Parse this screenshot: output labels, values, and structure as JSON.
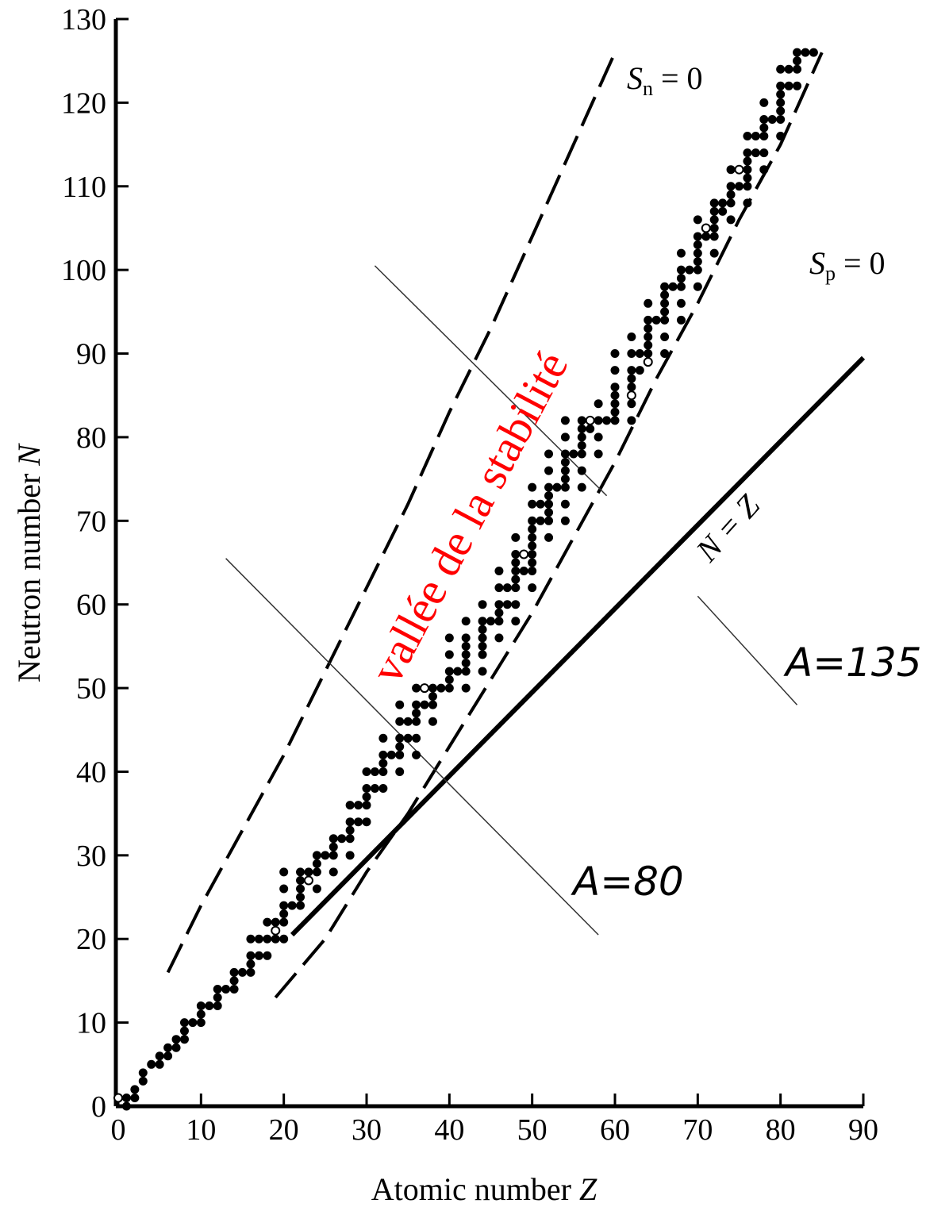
{
  "chart_data": {
    "type": "scatter",
    "xlabel_text": "Atomic number ",
    "xlabel_var": "Z",
    "ylabel_text": "Neutron number ",
    "ylabel_var": "N",
    "xlim": [
      0,
      90
    ],
    "ylim": [
      0,
      130
    ],
    "x_ticks": [
      0,
      10,
      20,
      30,
      40,
      50,
      60,
      70,
      80,
      90
    ],
    "y_ticks": [
      0,
      10,
      20,
      30,
      40,
      50,
      60,
      70,
      80,
      90,
      100,
      110,
      120,
      130
    ],
    "grid": false,
    "annotations": {
      "sn_var": "S",
      "sn_sub": "n",
      "sn_rest": " = 0",
      "sp_var": "S",
      "sp_sub": "p",
      "sp_rest": " = 0",
      "nz_label": "N = Z",
      "a80_label": "A=80",
      "a135_label": "A=135",
      "overlay_label": "vallée de la stabilité"
    },
    "lines": {
      "sn_zero": [
        [
          6,
          16
        ],
        [
          10,
          24
        ],
        [
          15,
          33
        ],
        [
          20,
          42
        ],
        [
          25,
          52
        ],
        [
          30,
          62
        ],
        [
          35,
          72
        ],
        [
          40,
          83
        ],
        [
          45,
          93
        ],
        [
          50,
          104
        ],
        [
          55,
          115
        ],
        [
          60,
          126
        ]
      ],
      "sp_zero": [
        [
          19,
          13
        ],
        [
          25,
          20
        ],
        [
          30,
          28
        ],
        [
          35,
          35
        ],
        [
          40,
          43
        ],
        [
          45,
          51
        ],
        [
          50,
          59
        ],
        [
          55,
          68
        ],
        [
          60,
          77
        ],
        [
          65,
          87
        ],
        [
          70,
          96
        ],
        [
          75,
          106
        ],
        [
          80,
          115
        ],
        [
          85,
          126
        ]
      ],
      "n_equals_z_guide": [
        [
          21,
          20.5
        ],
        [
          90,
          89.5
        ]
      ],
      "a80_isobar": [
        [
          13,
          65.5
        ],
        [
          58,
          20.5
        ]
      ],
      "a135_isobar": [
        [
          31,
          100.5
        ],
        [
          59,
          73
        ]
      ],
      "a135_isobar_lower": [
        [
          70,
          61
        ],
        [
          82,
          48
        ]
      ]
    },
    "stable_points": [
      [
        1,
        0
      ],
      [
        1,
        1
      ],
      [
        2,
        1
      ],
      [
        2,
        2
      ],
      [
        3,
        3
      ],
      [
        3,
        4
      ],
      [
        4,
        5
      ],
      [
        5,
        5
      ],
      [
        5,
        6
      ],
      [
        6,
        6
      ],
      [
        6,
        7
      ],
      [
        7,
        7
      ],
      [
        7,
        8
      ],
      [
        8,
        8
      ],
      [
        8,
        9
      ],
      [
        8,
        10
      ],
      [
        9,
        10
      ],
      [
        10,
        10
      ],
      [
        10,
        11
      ],
      [
        10,
        12
      ],
      [
        11,
        12
      ],
      [
        12,
        12
      ],
      [
        12,
        13
      ],
      [
        12,
        14
      ],
      [
        13,
        14
      ],
      [
        14,
        14
      ],
      [
        14,
        15
      ],
      [
        14,
        16
      ],
      [
        15,
        16
      ],
      [
        16,
        16
      ],
      [
        16,
        17
      ],
      [
        16,
        18
      ],
      [
        16,
        20
      ],
      [
        17,
        18
      ],
      [
        17,
        20
      ],
      [
        18,
        18
      ],
      [
        18,
        20
      ],
      [
        18,
        22
      ],
      [
        19,
        20
      ],
      [
        19,
        22
      ],
      [
        20,
        20
      ],
      [
        20,
        22
      ],
      [
        20,
        23
      ],
      [
        20,
        24
      ],
      [
        20,
        26
      ],
      [
        20,
        28
      ],
      [
        21,
        24
      ],
      [
        22,
        24
      ],
      [
        22,
        25
      ],
      [
        22,
        26
      ],
      [
        22,
        27
      ],
      [
        22,
        28
      ],
      [
        23,
        28
      ],
      [
        24,
        26
      ],
      [
        24,
        28
      ],
      [
        24,
        29
      ],
      [
        24,
        30
      ],
      [
        25,
        30
      ],
      [
        26,
        28
      ],
      [
        26,
        30
      ],
      [
        26,
        31
      ],
      [
        26,
        32
      ],
      [
        27,
        32
      ],
      [
        28,
        30
      ],
      [
        28,
        32
      ],
      [
        28,
        33
      ],
      [
        28,
        34
      ],
      [
        28,
        36
      ],
      [
        29,
        34
      ],
      [
        29,
        36
      ],
      [
        30,
        34
      ],
      [
        30,
        36
      ],
      [
        30,
        37
      ],
      [
        30,
        38
      ],
      [
        30,
        40
      ],
      [
        31,
        38
      ],
      [
        31,
        40
      ],
      [
        32,
        38
      ],
      [
        32,
        40
      ],
      [
        32,
        41
      ],
      [
        32,
        42
      ],
      [
        32,
        44
      ],
      [
        33,
        42
      ],
      [
        34,
        40
      ],
      [
        34,
        42
      ],
      [
        34,
        43
      ],
      [
        34,
        44
      ],
      [
        34,
        46
      ],
      [
        34,
        48
      ],
      [
        35,
        44
      ],
      [
        35,
        46
      ],
      [
        36,
        42
      ],
      [
        36,
        44
      ],
      [
        36,
        46
      ],
      [
        36,
        47
      ],
      [
        36,
        48
      ],
      [
        36,
        50
      ],
      [
        37,
        48
      ],
      [
        38,
        46
      ],
      [
        38,
        48
      ],
      [
        38,
        49
      ],
      [
        38,
        50
      ],
      [
        39,
        50
      ],
      [
        40,
        50
      ],
      [
        40,
        51
      ],
      [
        40,
        52
      ],
      [
        40,
        54
      ],
      [
        40,
        56
      ],
      [
        41,
        52
      ],
      [
        42,
        50
      ],
      [
        42,
        52
      ],
      [
        42,
        53
      ],
      [
        42,
        54
      ],
      [
        42,
        55
      ],
      [
        42,
        56
      ],
      [
        42,
        58
      ],
      [
        44,
        52
      ],
      [
        44,
        54
      ],
      [
        44,
        55
      ],
      [
        44,
        56
      ],
      [
        44,
        57
      ],
      [
        44,
        58
      ],
      [
        44,
        60
      ],
      [
        45,
        58
      ],
      [
        46,
        56
      ],
      [
        46,
        58
      ],
      [
        46,
        59
      ],
      [
        46,
        60
      ],
      [
        46,
        62
      ],
      [
        46,
        64
      ],
      [
        47,
        60
      ],
      [
        47,
        62
      ],
      [
        48,
        58
      ],
      [
        48,
        60
      ],
      [
        48,
        62
      ],
      [
        48,
        63
      ],
      [
        48,
        64
      ],
      [
        48,
        65
      ],
      [
        48,
        66
      ],
      [
        48,
        68
      ],
      [
        49,
        64
      ],
      [
        49,
        66
      ],
      [
        50,
        62
      ],
      [
        50,
        64
      ],
      [
        50,
        65
      ],
      [
        50,
        66
      ],
      [
        50,
        67
      ],
      [
        50,
        68
      ],
      [
        50,
        69
      ],
      [
        50,
        70
      ],
      [
        50,
        72
      ],
      [
        50,
        74
      ],
      [
        51,
        70
      ],
      [
        51,
        72
      ],
      [
        52,
        68
      ],
      [
        52,
        70
      ],
      [
        52,
        71
      ],
      [
        52,
        72
      ],
      [
        52,
        73
      ],
      [
        52,
        74
      ],
      [
        52,
        76
      ],
      [
        52,
        78
      ],
      [
        53,
        74
      ],
      [
        54,
        70
      ],
      [
        54,
        72
      ],
      [
        54,
        74
      ],
      [
        54,
        75
      ],
      [
        54,
        76
      ],
      [
        54,
        77
      ],
      [
        54,
        78
      ],
      [
        54,
        80
      ],
      [
        54,
        82
      ],
      [
        55,
        78
      ],
      [
        56,
        74
      ],
      [
        56,
        76
      ],
      [
        56,
        78
      ],
      [
        56,
        79
      ],
      [
        56,
        80
      ],
      [
        56,
        81
      ],
      [
        56,
        82
      ],
      [
        57,
        81
      ],
      [
        57,
        82
      ],
      [
        58,
        78
      ],
      [
        58,
        80
      ],
      [
        58,
        82
      ],
      [
        58,
        84
      ],
      [
        59,
        82
      ],
      [
        60,
        82
      ],
      [
        60,
        83
      ],
      [
        60,
        84
      ],
      [
        60,
        85
      ],
      [
        60,
        86
      ],
      [
        60,
        88
      ],
      [
        60,
        90
      ],
      [
        62,
        82
      ],
      [
        62,
        84
      ],
      [
        62,
        85
      ],
      [
        62,
        86
      ],
      [
        62,
        87
      ],
      [
        62,
        88
      ],
      [
        62,
        90
      ],
      [
        62,
        92
      ],
      [
        63,
        88
      ],
      [
        63,
        90
      ],
      [
        64,
        90
      ],
      [
        64,
        91
      ],
      [
        64,
        92
      ],
      [
        64,
        93
      ],
      [
        64,
        94
      ],
      [
        64,
        96
      ],
      [
        65,
        94
      ],
      [
        66,
        90
      ],
      [
        66,
        92
      ],
      [
        66,
        94
      ],
      [
        66,
        95
      ],
      [
        66,
        96
      ],
      [
        66,
        97
      ],
      [
        66,
        98
      ],
      [
        67,
        98
      ],
      [
        68,
        94
      ],
      [
        68,
        96
      ],
      [
        68,
        98
      ],
      [
        68,
        99
      ],
      [
        68,
        100
      ],
      [
        68,
        102
      ],
      [
        69,
        100
      ],
      [
        70,
        98
      ],
      [
        70,
        100
      ],
      [
        70,
        101
      ],
      [
        70,
        102
      ],
      [
        70,
        103
      ],
      [
        70,
        104
      ],
      [
        70,
        106
      ],
      [
        71,
        104
      ],
      [
        71,
        105
      ],
      [
        72,
        102
      ],
      [
        72,
        104
      ],
      [
        72,
        105
      ],
      [
        72,
        106
      ],
      [
        72,
        107
      ],
      [
        72,
        108
      ],
      [
        73,
        107
      ],
      [
        73,
        108
      ],
      [
        74,
        106
      ],
      [
        74,
        108
      ],
      [
        74,
        109
      ],
      [
        74,
        110
      ],
      [
        74,
        112
      ],
      [
        75,
        110
      ],
      [
        75,
        112
      ],
      [
        76,
        108
      ],
      [
        76,
        110
      ],
      [
        76,
        111
      ],
      [
        76,
        112
      ],
      [
        76,
        113
      ],
      [
        76,
        114
      ],
      [
        76,
        116
      ],
      [
        77,
        114
      ],
      [
        77,
        116
      ],
      [
        78,
        112
      ],
      [
        78,
        114
      ],
      [
        78,
        116
      ],
      [
        78,
        117
      ],
      [
        78,
        118
      ],
      [
        78,
        120
      ],
      [
        79,
        118
      ],
      [
        80,
        116
      ],
      [
        80,
        118
      ],
      [
        80,
        119
      ],
      [
        80,
        120
      ],
      [
        80,
        121
      ],
      [
        80,
        122
      ],
      [
        80,
        124
      ],
      [
        81,
        122
      ],
      [
        81,
        124
      ],
      [
        82,
        122
      ],
      [
        82,
        124
      ],
      [
        82,
        125
      ],
      [
        82,
        126
      ],
      [
        83,
        126
      ],
      [
        84,
        126
      ]
    ],
    "long_lived_points": [
      [
        0,
        1
      ],
      [
        19,
        21
      ],
      [
        23,
        27
      ],
      [
        37,
        50
      ],
      [
        49,
        66
      ],
      [
        57,
        82
      ],
      [
        62,
        85
      ],
      [
        64,
        89
      ],
      [
        71,
        105
      ],
      [
        75,
        112
      ]
    ]
  }
}
